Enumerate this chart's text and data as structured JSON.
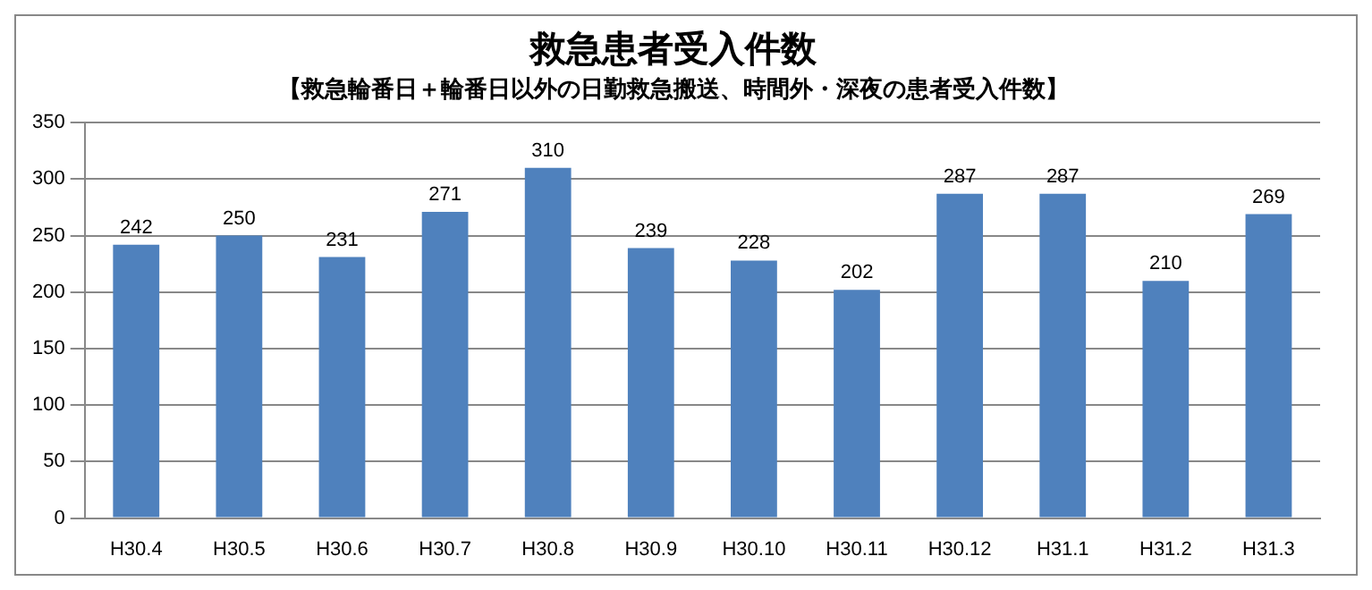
{
  "chart_data": {
    "type": "bar",
    "title": "救急患者受入件数",
    "subtitle": "【救急輪番日＋輪番日以外の日勤救急搬送、時間外・深夜の患者受入件数】",
    "categories": [
      "H30.4",
      "H30.5",
      "H30.6",
      "H30.7",
      "H30.8",
      "H30.9",
      "H30.10",
      "H30.11",
      "H30.12",
      "H31.1",
      "H31.2",
      "H31.3"
    ],
    "values": [
      242,
      250,
      231,
      271,
      310,
      239,
      228,
      202,
      287,
      287,
      210,
      269
    ],
    "color": "#4f81bd",
    "ylim": [
      0,
      350
    ],
    "yticks": [
      0,
      50,
      100,
      150,
      200,
      250,
      300,
      350
    ],
    "grid": "y",
    "data_labels": true
  }
}
